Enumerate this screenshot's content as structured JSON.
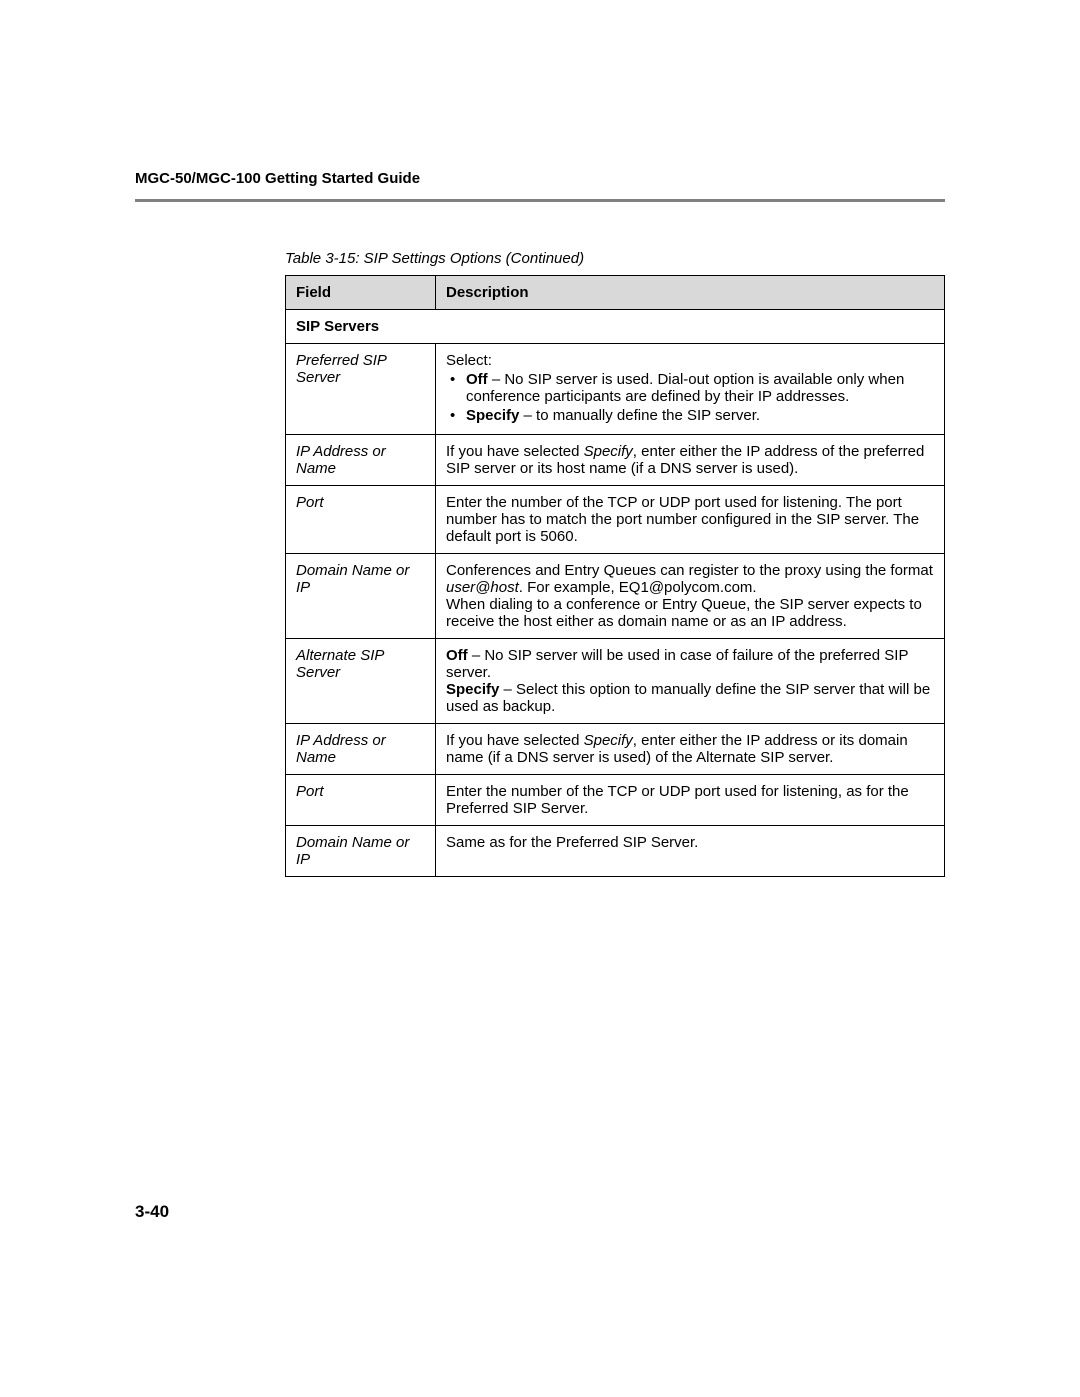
{
  "header": {
    "title": "MGC-50/MGC-100 Getting Started Guide"
  },
  "caption": "Table 3-15: SIP Settings Options (Continued)",
  "columns": {
    "field": "Field",
    "description": "Description"
  },
  "section": {
    "label": "SIP Servers"
  },
  "rows": {
    "preferred_sip_server": {
      "field": "Preferred SIP Server",
      "intro": "Select:",
      "bullet_off_bold": "Off",
      "bullet_off_rest": " – No SIP server is used. Dial-out option is available only when conference participants are defined by their IP addresses.",
      "bullet_specify_bold": "Specify",
      "bullet_specify_rest": " – to manually define the SIP server."
    },
    "ip_addr_1": {
      "field": "IP Address or Name",
      "part1": "If you have selected ",
      "italic": "Specify",
      "part2": ", enter either the IP address of the preferred SIP server or its host name (if a DNS server is used)."
    },
    "port_1": {
      "field": "Port",
      "text": "Enter the number of the TCP or UDP port used for listening. The port number has to match the port number configured in the SIP server. The default port is 5060."
    },
    "domain_1": {
      "field": "Domain Name or IP",
      "part1": "Conferences and Entry Queues can register to the proxy using the format ",
      "italic": "user@host",
      "part2": ". For example, EQ1@polycom.com.",
      "part3": "When dialing to a conference or Entry Queue, the SIP server expects to receive the host either as domain name or as an IP address."
    },
    "alternate_sip_server": {
      "field": "Alternate SIP Server",
      "off_bold": "Off",
      "off_rest": " – No SIP server will be used in case of failure of the preferred SIP server.",
      "specify_bold": "Specify",
      "specify_rest": " – Select this option to manually define the SIP server that will be used as backup."
    },
    "ip_addr_2": {
      "field": "IP Address or Name",
      "part1": "If you have selected ",
      "italic": "Specify",
      "part2": ", enter either the IP address or its domain name (if a DNS server is used) of the Alternate SIP server."
    },
    "port_2": {
      "field": "Port",
      "text": "Enter the number of the TCP or UDP port used for listening, as for the Preferred SIP Server."
    },
    "domain_2": {
      "field": "Domain Name or IP",
      "text": "Same as for the Preferred SIP Server."
    }
  },
  "page_number": "3-40"
}
